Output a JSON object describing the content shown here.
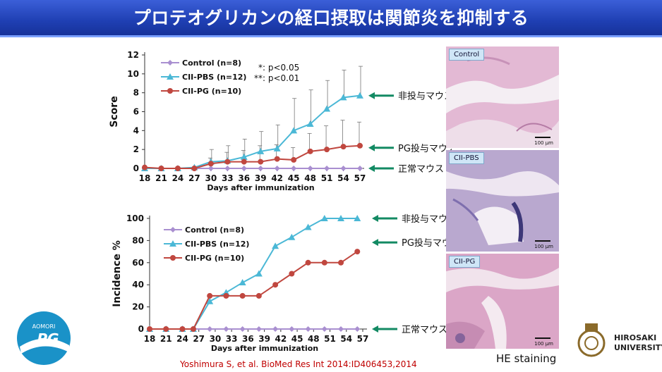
{
  "title": "プロテオグリカンの経口摂取は関節炎を抑制する",
  "citation": "Yoshimura S, et al. BioMed Res Int 2014:ID406453,2014",
  "he_label": "HE staining",
  "panels": [
    {
      "label": "Control",
      "scale": "100 µm"
    },
    {
      "label": "CII-PBS",
      "scale": "100 µm"
    },
    {
      "label": "CII-PG",
      "scale": "100 µm"
    }
  ],
  "logo_left": {
    "line1": "AOMORI",
    "line2": "PG"
  },
  "logo_right": {
    "line1": "HIROSAKI",
    "line2": "UNIVERSITY"
  },
  "colors": {
    "control": "#a98fd0",
    "pbs": "#4bb8d6",
    "pg": "#c0473f",
    "arrow": "#138a63"
  },
  "chart_data": [
    {
      "type": "line",
      "xlabel": "Days after immunization",
      "ylabel": "Score",
      "x": [
        18,
        21,
        24,
        27,
        30,
        33,
        36,
        39,
        42,
        45,
        48,
        51,
        54,
        57
      ],
      "xticks": [
        "18",
        "21",
        "24",
        "27",
        "30",
        "33",
        "36",
        "39",
        "42",
        "45",
        "48",
        "51",
        "54",
        "57"
      ],
      "ylim": [
        0,
        12
      ],
      "yticks": [
        "0",
        "2",
        "4",
        "6",
        "8",
        "10",
        "12"
      ],
      "significance": [
        "*: p<0.05",
        "**: p<0.01"
      ],
      "series": [
        {
          "name": "Control (n=8)",
          "x": [
            18,
            21,
            24,
            27,
            30,
            33,
            36,
            39,
            42,
            45,
            48,
            51,
            54,
            57
          ],
          "values": [
            0,
            0,
            0,
            0,
            0,
            0,
            0,
            0,
            0,
            0,
            0,
            0,
            0,
            0
          ]
        },
        {
          "name": "CII-PBS (n=12)",
          "x": [
            18,
            21,
            24,
            27,
            30,
            33,
            36,
            39,
            42,
            45,
            48,
            51,
            54,
            57
          ],
          "values": [
            0,
            0,
            0,
            0.1,
            0.7,
            0.8,
            1.2,
            1.8,
            2.1,
            4.0,
            4.7,
            6.3,
            7.5,
            7.7
          ],
          "error": [
            0,
            0,
            0,
            0,
            1.3,
            1.6,
            1.9,
            2.1,
            2.5,
            3.4,
            3.6,
            3.0,
            2.9,
            3.1
          ]
        },
        {
          "name": "CII-PG (n=10)",
          "x": [
            18,
            21,
            24,
            27,
            30,
            33,
            36,
            39,
            42,
            45,
            48,
            51,
            54,
            57
          ],
          "values": [
            0.1,
            0,
            0,
            0,
            0.5,
            0.7,
            0.7,
            0.7,
            1.0,
            0.9,
            1.8,
            2.0,
            2.3,
            2.4
          ],
          "error": [
            0,
            0,
            0,
            0,
            0.6,
            1.0,
            1.2,
            1.7,
            1.5,
            1.3,
            1.9,
            2.5,
            2.8,
            2.5
          ]
        }
      ],
      "annotations": [
        "非投与マウス",
        "PG投与マウス",
        "正常マウス"
      ]
    },
    {
      "type": "line",
      "xlabel": "Days after immunization",
      "ylabel": "Incidence %",
      "x": [
        18,
        21,
        24,
        27,
        30,
        33,
        36,
        39,
        42,
        45,
        48,
        51,
        54,
        57
      ],
      "xticks": [
        "18",
        "21",
        "24",
        "27",
        "30",
        "33",
        "36",
        "39",
        "42",
        "45",
        "48",
        "51",
        "54",
        "57"
      ],
      "ylim": [
        0,
        100
      ],
      "yticks": [
        "0",
        "20",
        "40",
        "60",
        "80",
        "100"
      ],
      "series": [
        {
          "name": "Control (n=8)",
          "x": [
            18,
            21,
            24,
            26,
            29,
            32,
            35,
            38,
            41,
            44,
            47,
            50,
            53,
            56
          ],
          "values": [
            0,
            0,
            0,
            0,
            0,
            0,
            0,
            0,
            0,
            0,
            0,
            0,
            0,
            0
          ]
        },
        {
          "name": "CII-PBS (n=12)",
          "x": [
            18,
            21,
            24,
            26,
            29,
            32,
            35,
            38,
            41,
            44,
            47,
            50,
            53,
            56
          ],
          "values": [
            0,
            0,
            0,
            0,
            25,
            33,
            42,
            50,
            75,
            83,
            92,
            100,
            100,
            100
          ]
        },
        {
          "name": "CII-PG (n=10)",
          "x": [
            18,
            21,
            24,
            26,
            29,
            32,
            35,
            38,
            41,
            44,
            47,
            50,
            53,
            56
          ],
          "values": [
            0,
            0,
            0,
            0,
            30,
            30,
            30,
            30,
            40,
            50,
            60,
            60,
            60,
            70
          ]
        }
      ],
      "annotations": [
        "非投与マウス",
        "PG投与マウス",
        "正常マウス"
      ]
    }
  ]
}
